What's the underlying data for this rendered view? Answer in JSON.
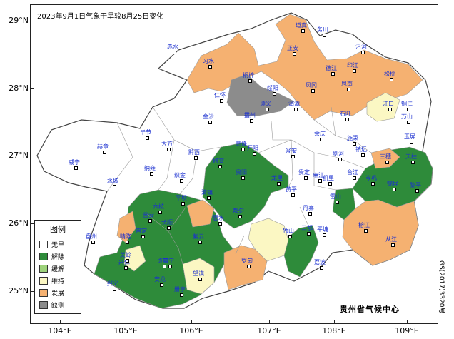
{
  "title": "2023年9月1日气象干旱较8月25日变化",
  "agency": "贵州省气候中心",
  "approval_code": "GS(2017)3320号",
  "lat_labels": [
    "29°N",
    "28°N",
    "27°N",
    "26°N",
    "25°N"
  ],
  "lon_labels": [
    "104°E",
    "105°E",
    "106°E",
    "107°E",
    "108°E",
    "109°E"
  ],
  "legend": {
    "title": "图例",
    "items": [
      {
        "label": "无旱",
        "color": "#ffffff"
      },
      {
        "label": "解除",
        "color": "#2e8b3a"
      },
      {
        "label": "缓解",
        "color": "#9dd27a"
      },
      {
        "label": "维持",
        "color": "#fbf7c3"
      },
      {
        "label": "发展",
        "color": "#f5b171"
      },
      {
        "label": "缺测",
        "color": "#8c8c8c"
      }
    ]
  },
  "colors": {
    "county_border": "#9a9a9a",
    "province_border": "#444444",
    "city_label": "#1a2fd0"
  },
  "cities": [
    "道真",
    "务川",
    "沿河",
    "赤水",
    "习水",
    "正安",
    "桐梓",
    "绥阳",
    "凤冈",
    "德江",
    "印江",
    "松桃",
    "仁怀",
    "遵义",
    "湄潭",
    "思南",
    "江口",
    "铜仁",
    "万山",
    "金沙",
    "播州",
    "余庆",
    "石阡",
    "玉屏",
    "毕节",
    "大方",
    "黔西",
    "息烽",
    "开阳",
    "瓮安",
    "施秉",
    "镇远",
    "三穗",
    "天柱",
    "威宁",
    "赫章",
    "纳雍",
    "织金",
    "修文",
    "清镇",
    "贵阳",
    "龙里",
    "贵定",
    "麻江",
    "凯里",
    "台江",
    "剑河",
    "锦屏",
    "水城",
    "六枝",
    "普定",
    "平坝",
    "长顺",
    "惠水",
    "都匀",
    "丹寨",
    "雷山",
    "榕江",
    "黎平",
    "盘州",
    "晴隆",
    "关岭",
    "镇宁",
    "紫云",
    "罗甸",
    "平塘",
    "独山",
    "三都",
    "从江",
    "兴仁",
    "贞丰",
    "望谟",
    "安龙",
    "兴义",
    "册亨",
    "荔波",
    "黄平",
    "岑巩",
    "普安"
  ]
}
